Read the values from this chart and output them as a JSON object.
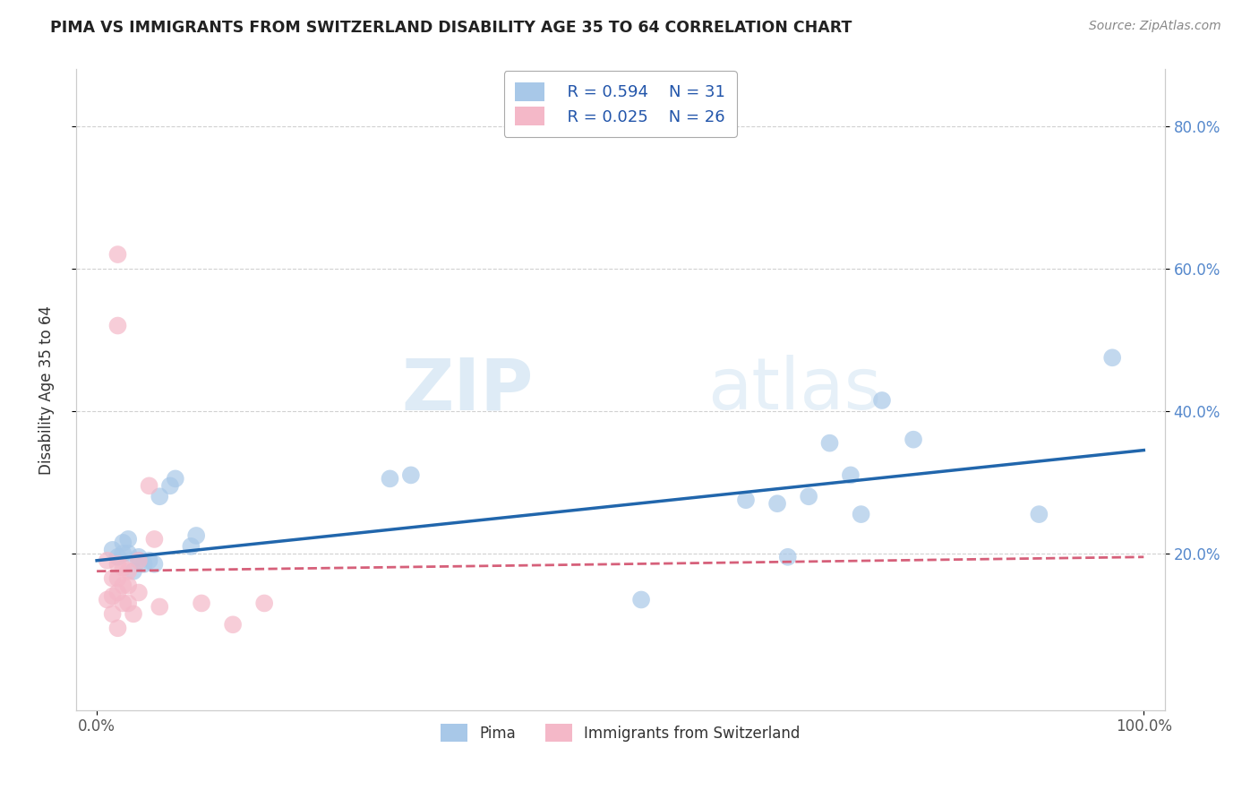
{
  "title": "PIMA VS IMMIGRANTS FROM SWITZERLAND DISABILITY AGE 35 TO 64 CORRELATION CHART",
  "source_text": "Source: ZipAtlas.com",
  "ylabel": "Disability Age 35 to 64",
  "legend_label_blue": "Pima",
  "legend_label_pink": "Immigrants from Switzerland",
  "R_blue": 0.594,
  "N_blue": 31,
  "R_pink": 0.025,
  "N_pink": 26,
  "xlim": [
    -0.02,
    1.02
  ],
  "ylim": [
    -0.02,
    0.88
  ],
  "xtick_pos": [
    0.0,
    1.0
  ],
  "xtick_labels": [
    "0.0%",
    "100.0%"
  ],
  "ytick_pos": [
    0.2,
    0.4,
    0.6,
    0.8
  ],
  "ytick_labels": [
    "20.0%",
    "40.0%",
    "60.0%",
    "80.0%"
  ],
  "background_color": "#ffffff",
  "grid_color": "#cccccc",
  "blue_color": "#a8c8e8",
  "pink_color": "#f4b8c8",
  "blue_line_color": "#2166ac",
  "pink_line_color": "#d6607a",
  "watermark_zip": "ZIP",
  "watermark_atlas": "atlas",
  "blue_points_x": [
    0.015,
    0.02,
    0.025,
    0.025,
    0.03,
    0.03,
    0.035,
    0.04,
    0.04,
    0.045,
    0.05,
    0.055,
    0.06,
    0.07,
    0.075,
    0.09,
    0.095,
    0.28,
    0.3,
    0.52,
    0.62,
    0.65,
    0.66,
    0.68,
    0.7,
    0.72,
    0.73,
    0.75,
    0.78,
    0.9,
    0.97
  ],
  "blue_points_y": [
    0.205,
    0.195,
    0.2,
    0.215,
    0.22,
    0.2,
    0.175,
    0.19,
    0.195,
    0.185,
    0.19,
    0.185,
    0.28,
    0.295,
    0.305,
    0.21,
    0.225,
    0.305,
    0.31,
    0.135,
    0.275,
    0.27,
    0.195,
    0.28,
    0.355,
    0.31,
    0.255,
    0.415,
    0.36,
    0.255,
    0.475
  ],
  "pink_points_x": [
    0.01,
    0.01,
    0.015,
    0.015,
    0.015,
    0.02,
    0.02,
    0.02,
    0.02,
    0.025,
    0.025,
    0.025,
    0.03,
    0.03,
    0.03,
    0.035,
    0.04,
    0.04,
    0.05,
    0.055,
    0.06,
    0.1,
    0.13,
    0.16,
    0.02,
    0.02
  ],
  "pink_points_y": [
    0.19,
    0.135,
    0.165,
    0.14,
    0.115,
    0.185,
    0.165,
    0.145,
    0.095,
    0.18,
    0.155,
    0.13,
    0.175,
    0.155,
    0.13,
    0.115,
    0.19,
    0.145,
    0.295,
    0.22,
    0.125,
    0.13,
    0.1,
    0.13,
    0.62,
    0.52
  ],
  "blue_line_x": [
    0.0,
    1.0
  ],
  "blue_line_y": [
    0.19,
    0.345
  ],
  "pink_line_x": [
    0.0,
    1.0
  ],
  "pink_line_y": [
    0.175,
    0.195
  ]
}
